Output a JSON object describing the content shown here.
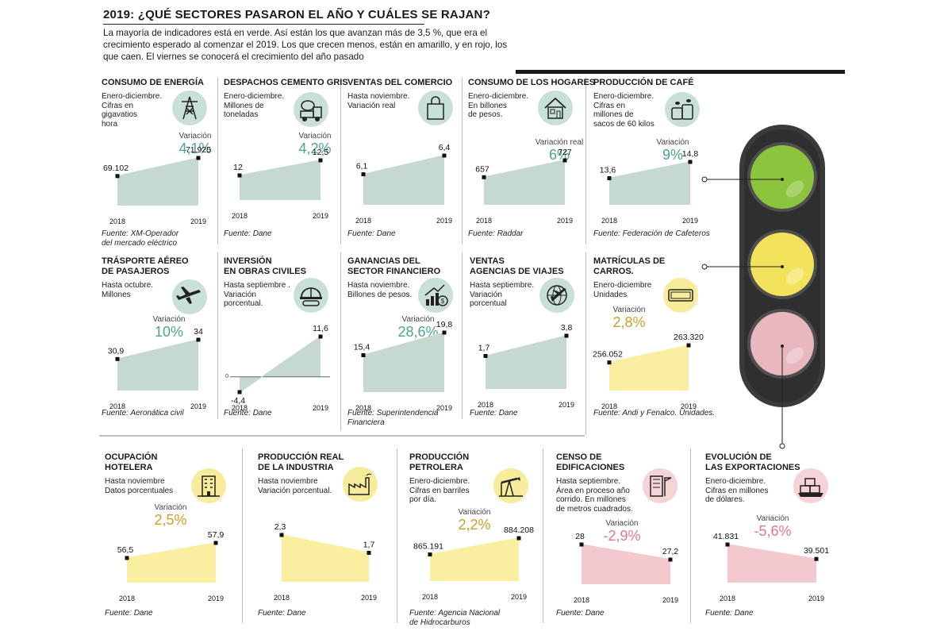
{
  "header": {
    "title": "2019: ¿QUÉ SECTORES PASARON EL AÑO Y CUÁLES SE RAJAN?",
    "intro": "La mayoría de indicadores está en verde. Así están los que avanzan más de 3,5 %, que era el crecimiento esperado al comenzar el 2019. Los que crecen menos, están en amarillo, y en rojo, los que caen. El viernes se conocerá el crecimiento del año pasado"
  },
  "colors": {
    "green_fill": "#c5d9d1",
    "green_text": "#4aa58e",
    "yellow_fill": "#faeea0",
    "yellow_text": "#c9a227",
    "red_fill": "#f4c9cd",
    "red_text": "#e07a86",
    "icon_green": "#c9e0d8",
    "icon_yellow": "#f6ec9c",
    "icon_red": "#f5d3d6"
  },
  "labels": {
    "variacion": "Variación"
  },
  "chart_data": [
    {
      "id": "energia",
      "type": "area",
      "title": "CONSUMO DE ENERGÍA",
      "desc": "Enero-diciembre.\nCifras en\ngigavatios\nhora",
      "color": "green",
      "icon": "power-tower-icon",
      "x": [
        "2018",
        "2019"
      ],
      "values": [
        69102,
        71925
      ],
      "value_labels": [
        "69.102",
        "71.925"
      ],
      "variation": "4,1%",
      "source": "Fuente: XM-Operador\ndel mercado eléctrico"
    },
    {
      "id": "cemento",
      "type": "area",
      "title": "DESPACHOS CEMENTO GRIS",
      "desc": "Enero-diciembre.\nMillones de\ntoneladas",
      "color": "green",
      "icon": "cement-truck-icon",
      "x": [
        "2018",
        "2019"
      ],
      "values": [
        12,
        12.5
      ],
      "value_labels": [
        "12",
        "12,5"
      ],
      "variation": "4,2%",
      "source": "Fuente: Dane"
    },
    {
      "id": "comercio",
      "type": "area",
      "title": "VENTAS DEL COMERCIO",
      "desc": "Hasta noviembre.\nVariación real",
      "color": "green",
      "icon": "shopping-bag-icon",
      "x": [
        "2018",
        "2019"
      ],
      "values": [
        6.1,
        6.4
      ],
      "value_labels": [
        "6,1",
        "6,4"
      ],
      "variation": null,
      "source": "Fuente: Dane"
    },
    {
      "id": "hogares",
      "type": "area",
      "title": "CONSUMO DE LOS HOGARES",
      "desc": "Enero-diciembre.\nEn billones\nde pesos.",
      "color": "green",
      "icon": "house-icon",
      "x": [
        "2018",
        "2019"
      ],
      "values": [
        657,
        727
      ],
      "value_labels": [
        "657",
        "727"
      ],
      "variation": "6%",
      "variation_label": "Variación real",
      "source": "Fuente: Raddar"
    },
    {
      "id": "cafe",
      "type": "area",
      "title": "PRODUCCIÓN DE CAFÉ",
      "desc": "Enero-diciembre.\nCifras en\nmillones de\nsacos de 60 kilos",
      "color": "green",
      "icon": "coffee-sacks-icon",
      "x": [
        "2018",
        "2019"
      ],
      "values": [
        13.6,
        14.8
      ],
      "value_labels": [
        "13,6",
        "14,8"
      ],
      "variation": "9%",
      "source": "Fuente: Federación de Cafeteros"
    },
    {
      "id": "aereo",
      "type": "area",
      "title": "TRÁSPORTE AÉREO\nDE PASAJEROS",
      "desc": "Hasta octubre.\nMillones",
      "color": "green",
      "icon": "airplane-icon",
      "x": [
        "2018",
        "2019"
      ],
      "values": [
        30.9,
        34
      ],
      "value_labels": [
        "30,9",
        "34"
      ],
      "variation": "10%",
      "source": "Fuente: Aeronática civil"
    },
    {
      "id": "obras",
      "type": "area",
      "title": "INVERSIÓN\nEN OBRAS CIVILES",
      "desc": "Hasta septiembre .\nVariación\nporcentual.",
      "color": "green",
      "icon": "hard-hat-icon",
      "x": [
        "2018",
        "2019"
      ],
      "values": [
        -4.4,
        11.6
      ],
      "value_labels": [
        "-4,4",
        "11,6"
      ],
      "zero_label": "0",
      "variation": null,
      "source": "Fuente: Dane"
    },
    {
      "id": "financiero",
      "type": "area",
      "title": "GANANCIAS DEL\nSECTOR FINANCIERO",
      "desc": "Hasta noviembre.\nBillones de pesos.",
      "color": "green",
      "icon": "growth-chart-icon",
      "x": [
        "2018",
        "2019"
      ],
      "values": [
        15.4,
        19.8
      ],
      "value_labels": [
        "15,4",
        "19,8"
      ],
      "variation": "28,6%",
      "source": "Fuente: Superintendencia\nFinanciera"
    },
    {
      "id": "viajes",
      "type": "area",
      "title": "VENTAS\nAGENCIAS DE VIAJES",
      "desc": "Hasta septiembre.\nVariación\nporcentual",
      "color": "green",
      "icon": "globe-plane-icon",
      "x": [
        "2018",
        "2019"
      ],
      "values": [
        1.7,
        3.8
      ],
      "value_labels": [
        "1,7",
        "3,8"
      ],
      "variation": null,
      "source": "Fuente: Dane"
    },
    {
      "id": "carros",
      "type": "area",
      "title": "MATRÍCULAS DE\nCARROS.",
      "desc": "Enero-diciembre\nUnidades",
      "color": "yellow",
      "icon": "license-plate-icon",
      "x": [
        "2018",
        "2019"
      ],
      "values": [
        256052,
        263320
      ],
      "value_labels": [
        "256.052",
        "263.320"
      ],
      "variation": "2,8%",
      "source": "Fuente: Andi y Fenalco. Unidades."
    },
    {
      "id": "hotelera",
      "type": "area",
      "title": "OCUPACIÓN\nHOTELERA",
      "desc": "Hasta noviembre\nDatos porcentuales",
      "color": "yellow",
      "icon": "hotel-building-icon",
      "x": [
        "2018",
        "2019"
      ],
      "values": [
        56.5,
        57.9
      ],
      "value_labels": [
        "56,5",
        "57,9"
      ],
      "variation": "2,5%",
      "source": "Fuente: Dane"
    },
    {
      "id": "industria",
      "type": "area",
      "title": "PRODUCCIÓN REAL\nDE LA INDUSTRIA",
      "desc": "Hasta noviembre\nVariación porcentual.",
      "color": "yellow",
      "icon": "factory-icon",
      "x": [
        "2018",
        "2019"
      ],
      "values": [
        2.3,
        1.7
      ],
      "value_labels": [
        "2,3",
        "1,7"
      ],
      "variation": null,
      "source": "Fuente: Dane"
    },
    {
      "id": "petrolera",
      "type": "area",
      "title": "PRODUCCIÓN\nPETROLERA",
      "desc": "Enero-diciembre.\nCifras en barriles\npor día.",
      "color": "yellow",
      "icon": "oil-pump-icon",
      "x": [
        "2018",
        "2019"
      ],
      "values": [
        865191,
        884208
      ],
      "value_labels": [
        "865.191",
        "884.208"
      ],
      "variation": "2,2%",
      "source": "Fuente: Agencia Nacional\nde Hidrocarburos"
    },
    {
      "id": "edificaciones",
      "type": "area",
      "title": "CENSO DE\nEDIFICACIONES",
      "desc": "Hasta septiembre.\nÁrea en proceso año\ncorrido. En millones\nde metros cuadrados.",
      "color": "red",
      "icon": "construction-icon",
      "x": [
        "2018",
        "2019"
      ],
      "values": [
        28,
        27.2
      ],
      "value_labels": [
        "28",
        "27,2"
      ],
      "variation": "-2,9%",
      "source": "Fuente: Dane"
    },
    {
      "id": "exportaciones",
      "type": "area",
      "title": "EVOLUCIÓN DE\nLAS EXPORTACIONES",
      "desc": "Enero-diciembre.\nCifras en millones\nde dólares.",
      "color": "red",
      "icon": "shipping-containers-icon",
      "x": [
        "2018",
        "2019"
      ],
      "values": [
        41831,
        39501
      ],
      "value_labels": [
        "41.831",
        "39.501"
      ],
      "variation": "-5,6%",
      "source": "Fuente: Dane"
    }
  ]
}
